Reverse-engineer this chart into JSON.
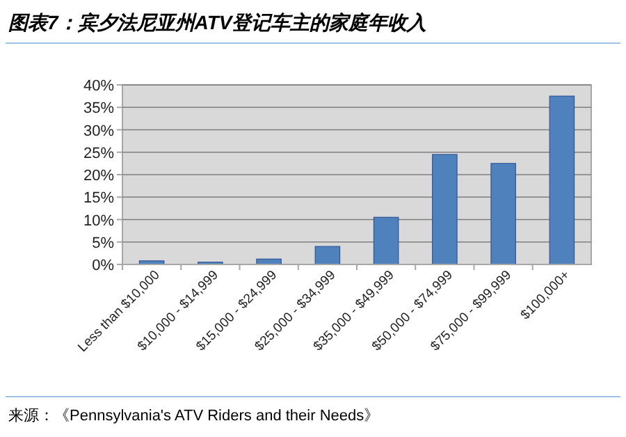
{
  "chart_data": {
    "type": "bar",
    "title": "图表7：宾夕法尼亚州ATV登记车主的家庭年收入",
    "categories": [
      "Less than $10,000",
      "$10,000 - $14,999",
      "$15,000 - $24,999",
      "$25,000 - $34,999",
      "$35,000 - $49,999",
      "$50,000 - $74,999",
      "$75,000 - $99,999",
      "$100,000+"
    ],
    "values": [
      0.8,
      0.5,
      1.2,
      4,
      10.5,
      24.5,
      22.5,
      37.5
    ],
    "color": "#4f81bd",
    "ylim": [
      0,
      40
    ],
    "yticks": [
      {
        "value": 0,
        "label": "0%"
      },
      {
        "value": 5,
        "label": "5%"
      },
      {
        "value": 10,
        "label": "10%"
      },
      {
        "value": 15,
        "label": "15%"
      },
      {
        "value": 20,
        "label": "20%"
      },
      {
        "value": 25,
        "label": "25%"
      },
      {
        "value": 30,
        "label": "30%"
      },
      {
        "value": 35,
        "label": "35%"
      },
      {
        "value": 40,
        "label": "40%"
      }
    ],
    "grid": "y",
    "annotations": [
      "来源：《Pennsylvania's ATV Riders and their Needs》"
    ]
  }
}
